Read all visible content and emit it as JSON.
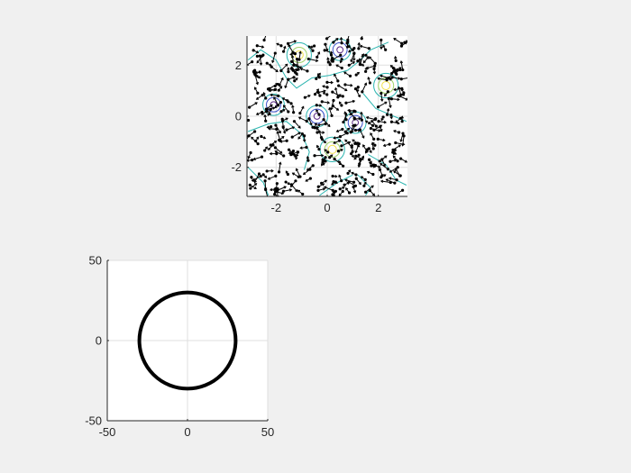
{
  "figure": {
    "background": "#f0f0f0"
  },
  "chart_data": [
    {
      "type": "contour",
      "title": "",
      "xlabel": "",
      "ylabel": "",
      "xlim": [
        -3.14,
        3.14
      ],
      "ylim": [
        -3.14,
        3.14
      ],
      "xticks": [
        -2,
        0,
        2
      ],
      "yticks": [
        -2,
        0,
        2
      ],
      "xtick_labels": [
        "-2",
        "0",
        "2"
      ],
      "ytick_labels": [
        "-2",
        "0",
        "2"
      ],
      "grid": true,
      "overlay": "quiver arrows (black) with dot tails",
      "peaks": [
        {
          "x": -1.1,
          "y": 2.4,
          "kind": "high"
        },
        {
          "x": 2.3,
          "y": 1.2,
          "kind": "high"
        },
        {
          "x": 0.2,
          "y": -1.3,
          "kind": "high"
        },
        {
          "x": 0.5,
          "y": 2.6,
          "kind": "low"
        },
        {
          "x": -2.1,
          "y": 0.45,
          "kind": "low"
        },
        {
          "x": -0.4,
          "y": 0.0,
          "kind": "low"
        },
        {
          "x": 1.1,
          "y": -0.25,
          "kind": "low"
        }
      ],
      "colors": {
        "high": "#f2e14a",
        "mid_high": "#9fd36a",
        "mid": "#2bb5b0",
        "low": "#3a4fc8",
        "very_low": "#5b2a86",
        "arrow": "#000000"
      }
    },
    {
      "type": "line",
      "title": "",
      "xlabel": "",
      "ylabel": "",
      "xlim": [
        -50,
        50
      ],
      "ylim": [
        -50,
        50
      ],
      "xticks": [
        -50,
        0,
        50
      ],
      "yticks": [
        -50,
        0,
        50
      ],
      "xtick_labels": [
        "-50",
        "0",
        "50"
      ],
      "ytick_labels": [
        "-50",
        "0",
        "50"
      ],
      "grid": true,
      "series": [
        {
          "shape": "circle",
          "center": [
            0,
            0
          ],
          "radius": 30,
          "color": "#000000"
        }
      ]
    }
  ]
}
